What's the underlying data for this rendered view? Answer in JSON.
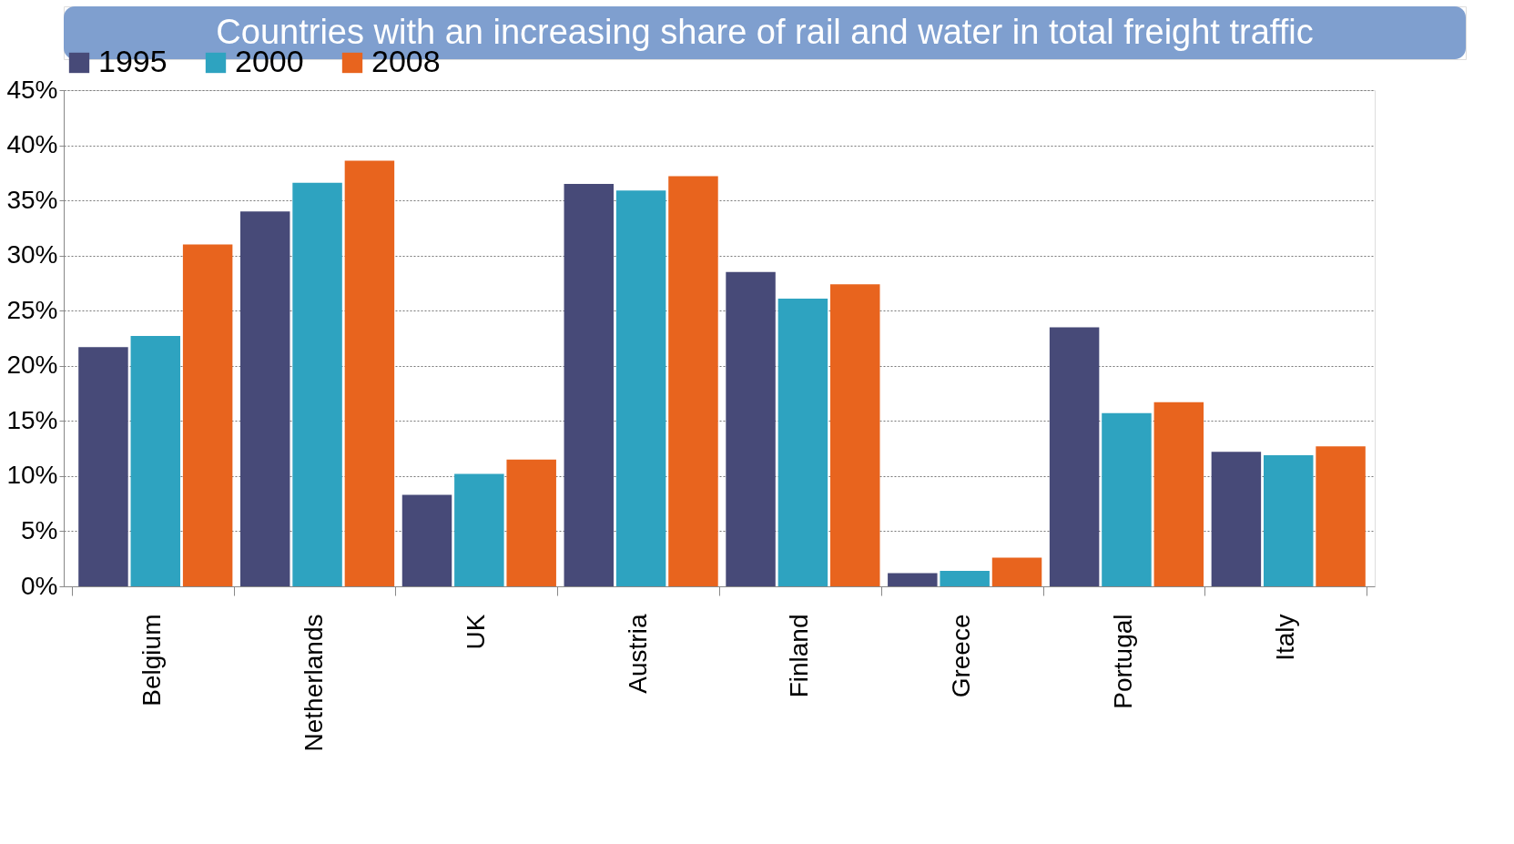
{
  "chart_data": {
    "type": "bar",
    "title": "Countries with an increasing share of rail and water in total freight traffic",
    "categories": [
      "Belgium",
      "Netherlands",
      "UK",
      "Austria",
      "Finland",
      "Greece",
      "Portugal",
      "Italy"
    ],
    "series": [
      {
        "name": "1995",
        "color": "#474a78",
        "values": [
          21.7,
          34.0,
          8.3,
          36.5,
          28.5,
          1.2,
          23.5,
          12.2
        ]
      },
      {
        "name": "2000",
        "color": "#2ea3c0",
        "values": [
          22.7,
          36.6,
          10.2,
          35.9,
          26.1,
          1.4,
          15.7,
          11.9
        ]
      },
      {
        "name": "2008",
        "color": "#e8641e",
        "values": [
          31.0,
          38.6,
          11.5,
          37.2,
          27.4,
          2.6,
          16.7,
          12.7
        ]
      }
    ],
    "ylim": [
      0,
      45
    ],
    "yticks": [
      {
        "value": 0,
        "label": "0%"
      },
      {
        "value": 5,
        "label": "5%"
      },
      {
        "value": 10,
        "label": "10%"
      },
      {
        "value": 15,
        "label": "15%"
      },
      {
        "value": 20,
        "label": "20%"
      },
      {
        "value": 25,
        "label": "25%"
      },
      {
        "value": 30,
        "label": "30%"
      },
      {
        "value": 35,
        "label": "35%"
      },
      {
        "value": 40,
        "label": "40%"
      },
      {
        "value": 45,
        "label": "45%"
      }
    ],
    "grid": "y",
    "legend": "top"
  }
}
